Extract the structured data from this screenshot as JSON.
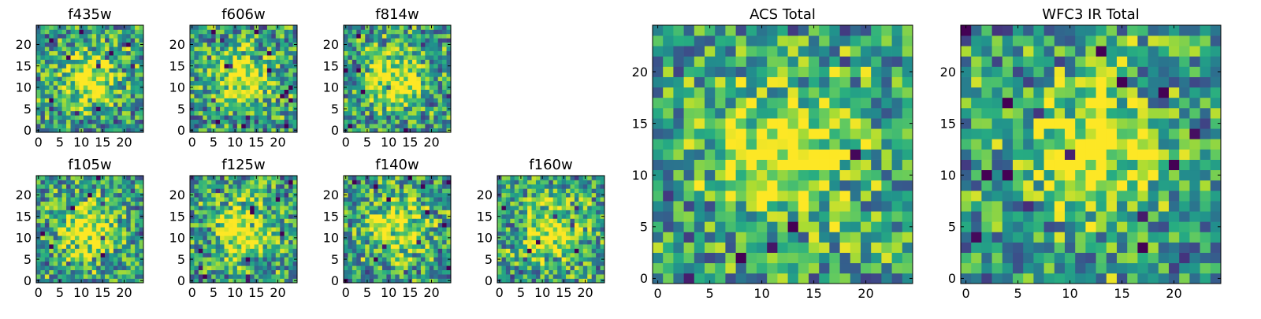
{
  "chart_data": [
    {
      "type": "heatmap",
      "title": "f435w",
      "grid_size": 25,
      "xlim": [
        0,
        24
      ],
      "ylim": [
        0,
        24
      ],
      "xticks": [
        "0",
        "5",
        "10",
        "15",
        "20"
      ],
      "yticks": [
        "0",
        "5",
        "10",
        "15",
        "20"
      ],
      "peak_intensity": 0.5,
      "noise_level": 0.7,
      "colormap": "viridis",
      "seed": 11
    },
    {
      "type": "heatmap",
      "title": "f606w",
      "grid_size": 25,
      "xlim": [
        0,
        24
      ],
      "ylim": [
        0,
        24
      ],
      "xticks": [
        "0",
        "5",
        "10",
        "15",
        "20"
      ],
      "yticks": [
        "0",
        "5",
        "10",
        "15",
        "20"
      ],
      "peak_intensity": 0.5,
      "noise_level": 0.7,
      "colormap": "viridis",
      "seed": 22
    },
    {
      "type": "heatmap",
      "title": "f814w",
      "grid_size": 25,
      "xlim": [
        0,
        24
      ],
      "ylim": [
        0,
        24
      ],
      "xticks": [
        "0",
        "5",
        "10",
        "15",
        "20"
      ],
      "yticks": [
        "0",
        "5",
        "10",
        "15",
        "20"
      ],
      "peak_intensity": 0.5,
      "noise_level": 0.7,
      "colormap": "viridis",
      "seed": 33
    },
    {
      "type": "heatmap",
      "title": "f105w",
      "grid_size": 25,
      "xlim": [
        0,
        24
      ],
      "ylim": [
        0,
        24
      ],
      "xticks": [
        "0",
        "5",
        "10",
        "15",
        "20"
      ],
      "yticks": [
        "0",
        "5",
        "10",
        "15",
        "20"
      ],
      "peak_intensity": 0.5,
      "noise_level": 0.7,
      "colormap": "viridis",
      "seed": 44
    },
    {
      "type": "heatmap",
      "title": "f125w",
      "grid_size": 25,
      "xlim": [
        0,
        24
      ],
      "ylim": [
        0,
        24
      ],
      "xticks": [
        "0",
        "5",
        "10",
        "15",
        "20"
      ],
      "yticks": [
        "0",
        "5",
        "10",
        "15",
        "20"
      ],
      "peak_intensity": 0.5,
      "noise_level": 0.7,
      "colormap": "viridis",
      "seed": 55
    },
    {
      "type": "heatmap",
      "title": "f140w",
      "grid_size": 25,
      "xlim": [
        0,
        24
      ],
      "ylim": [
        0,
        24
      ],
      "xticks": [
        "0",
        "5",
        "10",
        "15",
        "20"
      ],
      "yticks": [
        "0",
        "5",
        "10",
        "15",
        "20"
      ],
      "peak_intensity": 0.5,
      "noise_level": 0.7,
      "colormap": "viridis",
      "seed": 66
    },
    {
      "type": "heatmap",
      "title": "f160w",
      "grid_size": 25,
      "xlim": [
        0,
        24
      ],
      "ylim": [
        0,
        24
      ],
      "xticks": [
        "0",
        "5",
        "10",
        "15",
        "20"
      ],
      "yticks": [
        "0",
        "5",
        "10",
        "15",
        "20"
      ],
      "peak_intensity": 0.5,
      "noise_level": 0.7,
      "colormap": "viridis",
      "seed": 77
    },
    {
      "type": "heatmap",
      "title": "ACS Total",
      "grid_size": 25,
      "xlim": [
        0,
        24
      ],
      "ylim": [
        0,
        24
      ],
      "xticks": [
        "0",
        "5",
        "10",
        "15",
        "20"
      ],
      "yticks": [
        "0",
        "5",
        "10",
        "15",
        "20"
      ],
      "peak_intensity": 0.5,
      "noise_level": 0.7,
      "colormap": "viridis",
      "seed": 88
    },
    {
      "type": "heatmap",
      "title": "WFC3 IR Total",
      "grid_size": 25,
      "xlim": [
        0,
        24
      ],
      "ylim": [
        0,
        24
      ],
      "xticks": [
        "0",
        "5",
        "10",
        "15",
        "20"
      ],
      "yticks": [
        "0",
        "5",
        "10",
        "15",
        "20"
      ],
      "peak_intensity": 0.5,
      "noise_level": 0.7,
      "colormap": "viridis",
      "seed": 99
    }
  ]
}
